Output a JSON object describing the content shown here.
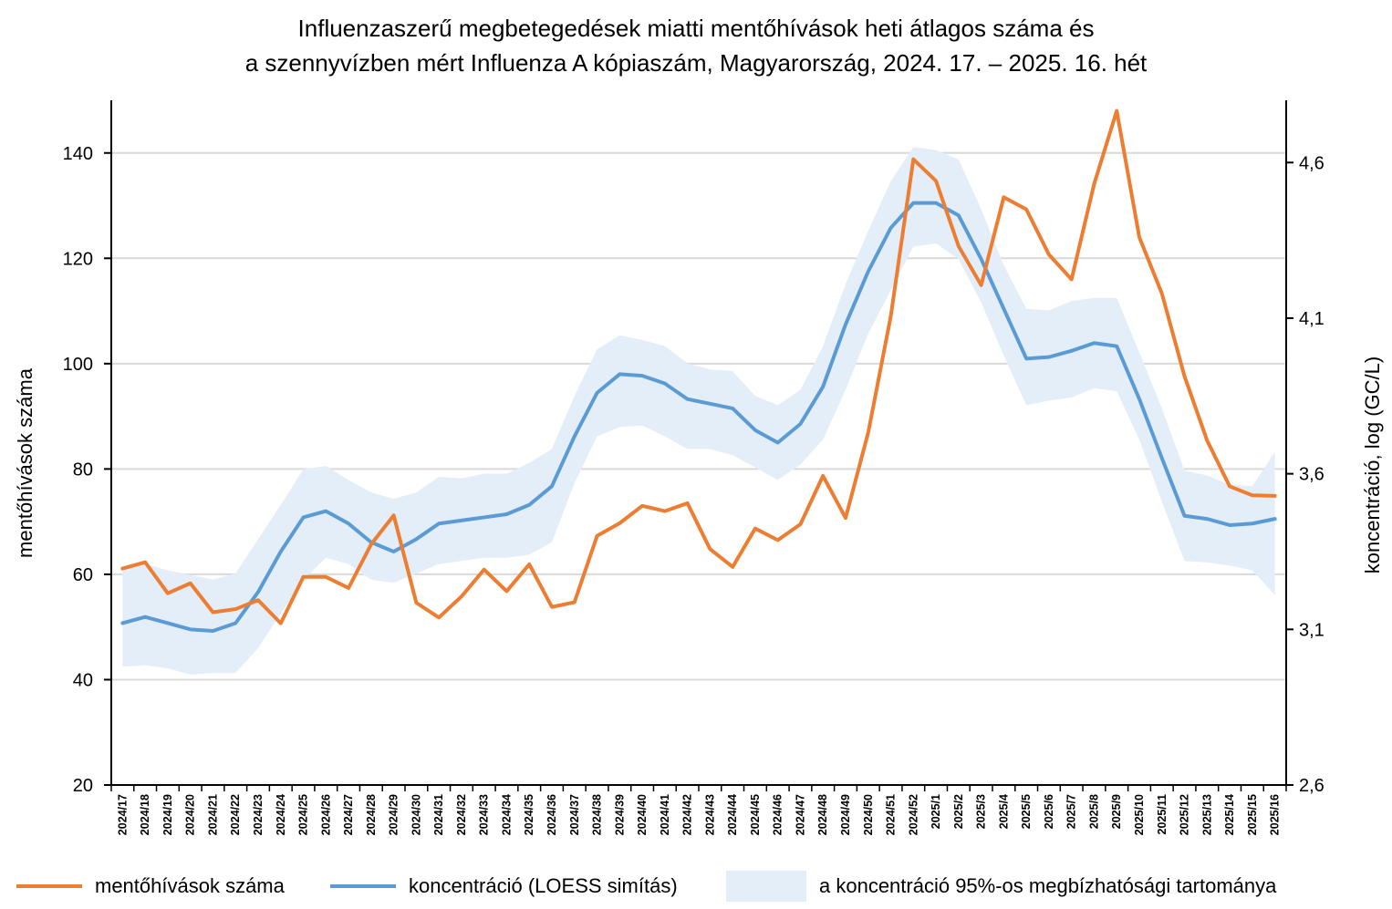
{
  "chart_data": {
    "type": "line",
    "title_lines": [
      "Influenzaszerű megbetegedések miatti mentőhívások heti átlagos száma és",
      "a szennyvízben mért Influenza A kópiaszám, Magyarország, 2024. 17. – 2025. 16. hét"
    ],
    "ylabel": "mentőhívások száma",
    "y2label": "koncentráció, log (GC/L)",
    "ylim": [
      20,
      150
    ],
    "yticks": [
      20,
      40,
      60,
      80,
      100,
      120,
      140
    ],
    "y2lim": [
      2.6,
      4.8
    ],
    "y2ticks": [
      2.6,
      3.1,
      3.6,
      4.1,
      4.6
    ],
    "y2tick_labels": [
      "2,6",
      "3,1",
      "3,6",
      "4,1",
      "4,6"
    ],
    "grid": true,
    "legend_position": "bottom",
    "categories": [
      "2024/17",
      "2024/18",
      "2024/19",
      "2024/20",
      "2024/21",
      "2024/22",
      "2024/23",
      "2024/24",
      "2024/25",
      "2024/26",
      "2024/27",
      "2024/28",
      "2024/29",
      "2024/30",
      "2024/31",
      "2024/32",
      "2024/33",
      "2024/34",
      "2024/35",
      "2024/36",
      "2024/37",
      "2024/38",
      "2024/39",
      "2024/40",
      "2024/41",
      "2024/42",
      "2024/43",
      "2024/44",
      "2024/45",
      "2024/46",
      "2024/47",
      "2024/48",
      "2024/49",
      "2024/50",
      "2024/51",
      "2024/52",
      "2025/1",
      "2025/2",
      "2025/3",
      "2025/4",
      "2025/5",
      "2025/6",
      "2025/7",
      "2025/8",
      "2025/9",
      "2025/10",
      "2025/11",
      "2025/12",
      "2025/13",
      "2025/14",
      "2025/15",
      "2025/16"
    ],
    "series": [
      {
        "name": "mentőhívások száma",
        "axis": "left",
        "color": "#ED7D31",
        "values": [
          61.1,
          62.3,
          56.4,
          58.3,
          52.8,
          53.4,
          55.1,
          50.7,
          59.5,
          59.5,
          57.4,
          65.7,
          71.2,
          54.6,
          51.8,
          55.8,
          60.9,
          56.8,
          61.9,
          53.8,
          54.7,
          67.3,
          69.7,
          73.0,
          72.0,
          73.5,
          64.8,
          61.4,
          68.7,
          66.5,
          69.5,
          78.7,
          70.7,
          86.9,
          109.0,
          138.8,
          134.7,
          122.3,
          114.9,
          131.6,
          129.3,
          120.7,
          116.0,
          134.1,
          148.0,
          124.0,
          113.3,
          97.6,
          85.4,
          76.7,
          75.0,
          74.9
        ]
      },
      {
        "name": "koncentráció (LOESS simítás)",
        "axis": "right",
        "color": "#5B9BD5",
        "values": [
          3.12,
          3.14,
          3.12,
          3.1,
          3.095,
          3.12,
          3.22,
          3.35,
          3.46,
          3.48,
          3.44,
          3.38,
          3.35,
          3.39,
          3.44,
          3.45,
          3.46,
          3.47,
          3.5,
          3.56,
          3.72,
          3.86,
          3.92,
          3.915,
          3.89,
          3.84,
          3.825,
          3.81,
          3.74,
          3.7,
          3.76,
          3.88,
          4.08,
          4.25,
          4.39,
          4.47,
          4.47,
          4.43,
          4.29,
          4.13,
          3.97,
          3.975,
          3.995,
          4.02,
          4.01,
          3.84,
          3.65,
          3.465,
          3.455,
          3.435,
          3.44,
          3.455
        ]
      }
    ],
    "band": {
      "name": "a koncentráció 95%-os megbízhatósági tartománya",
      "axis": "right",
      "color": "#E4EEF8",
      "lower": [
        2.98,
        2.985,
        2.975,
        2.955,
        2.96,
        2.96,
        3.04,
        3.15,
        3.26,
        3.33,
        3.31,
        3.26,
        3.25,
        3.28,
        3.31,
        3.32,
        3.33,
        3.33,
        3.34,
        3.38,
        3.57,
        3.72,
        3.75,
        3.755,
        3.72,
        3.68,
        3.68,
        3.66,
        3.62,
        3.58,
        3.63,
        3.71,
        3.87,
        4.05,
        4.19,
        4.33,
        4.34,
        4.29,
        4.15,
        3.98,
        3.82,
        3.835,
        3.845,
        3.875,
        3.865,
        3.71,
        3.51,
        3.32,
        3.315,
        3.305,
        3.29,
        3.21
      ],
      "upper": [
        3.29,
        3.31,
        3.29,
        3.275,
        3.26,
        3.28,
        3.39,
        3.5,
        3.615,
        3.625,
        3.58,
        3.54,
        3.52,
        3.54,
        3.59,
        3.585,
        3.6,
        3.6,
        3.635,
        3.68,
        3.85,
        4.0,
        4.045,
        4.03,
        4.01,
        3.955,
        3.935,
        3.93,
        3.85,
        3.82,
        3.87,
        4.01,
        4.21,
        4.38,
        4.54,
        4.65,
        4.64,
        4.61,
        4.45,
        4.27,
        4.13,
        4.125,
        4.155,
        4.165,
        4.165,
        3.99,
        3.81,
        3.61,
        3.595,
        3.565,
        3.56,
        3.67
      ]
    }
  }
}
